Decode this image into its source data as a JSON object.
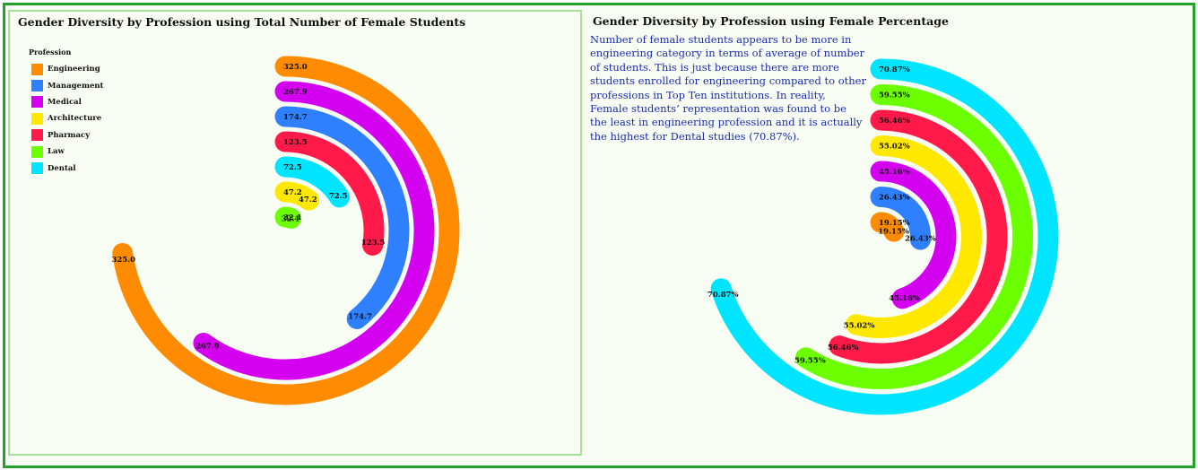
{
  "chart_data": [
    {
      "type": "radial-bar",
      "title": "Gender Diversity by Profession using Total Number of Female Students",
      "legend_title": "Profession",
      "legend_position": "top-left",
      "categories": [
        "Engineering",
        "Management",
        "Medical",
        "Architecture",
        "Pharmacy",
        "Law",
        "Dental"
      ],
      "series": [
        {
          "name": "Engineering",
          "value": 325.0,
          "label": "325.0",
          "color": "#ff8c00"
        },
        {
          "name": "Medical",
          "value": 267.9,
          "label": "267.9",
          "color": "#d400f0"
        },
        {
          "name": "Management",
          "value": 174.7,
          "label": "174.7",
          "color": "#2f80ff"
        },
        {
          "name": "Pharmacy",
          "value": 123.5,
          "label": "123.5",
          "color": "#ff1a4a"
        },
        {
          "name": "Dental",
          "value": 72.5,
          "label": "72.5",
          "color": "#00e5ff"
        },
        {
          "name": "Architecture",
          "value": 47.2,
          "label": "47.2",
          "color": "#ffe800"
        },
        {
          "name": "Law",
          "value": 32.1,
          "label": "32.1",
          "color": "#6cff00"
        }
      ]
    },
    {
      "type": "radial-bar",
      "title": "Gender Diversity by Profession using Female Percentage",
      "series": [
        {
          "name": "Dental",
          "value": 70.87,
          "label": "70.87%",
          "color": "#00e5ff"
        },
        {
          "name": "Law",
          "value": 59.55,
          "label": "59.55%",
          "color": "#6cff00"
        },
        {
          "name": "Pharmacy",
          "value": 56.46,
          "label": "56.46%",
          "color": "#ff1a4a"
        },
        {
          "name": "Architecture",
          "value": 55.02,
          "label": "55.02%",
          "color": "#ffe800"
        },
        {
          "name": "Medical",
          "value": 45.16,
          "label": "45.16%",
          "color": "#d400f0"
        },
        {
          "name": "Management",
          "value": 26.43,
          "label": "26.43%",
          "color": "#2f80ff"
        },
        {
          "name": "Engineering",
          "value": 19.15,
          "label": "19.15%",
          "color": "#ff8c00"
        }
      ]
    }
  ],
  "legend": [
    {
      "label": "Engineering",
      "color": "#ff8c00"
    },
    {
      "label": "Management",
      "color": "#2f80ff"
    },
    {
      "label": "Medical",
      "color": "#d400f0"
    },
    {
      "label": "Architecture",
      "color": "#ffe800"
    },
    {
      "label": "Pharmacy",
      "color": "#ff1a4a"
    },
    {
      "label": "Law",
      "color": "#6cff00"
    },
    {
      "label": "Dental",
      "color": "#00e5ff"
    }
  ],
  "annotation": "Number of female students appears to be more in engineering category in terms of average of number of students. This is just because there are more students enrolled for engineering compared to other professions in Top Ten institutions. In reality, Female students’ representation was found to be the least in engineering profession and it is actually the highest for Dental studies (70.87%).",
  "colors": {
    "frame": "#22a12b",
    "panel_border": "#a8e29a",
    "background": "#f8fdf3",
    "annotation_text": "#1c2bb0"
  }
}
